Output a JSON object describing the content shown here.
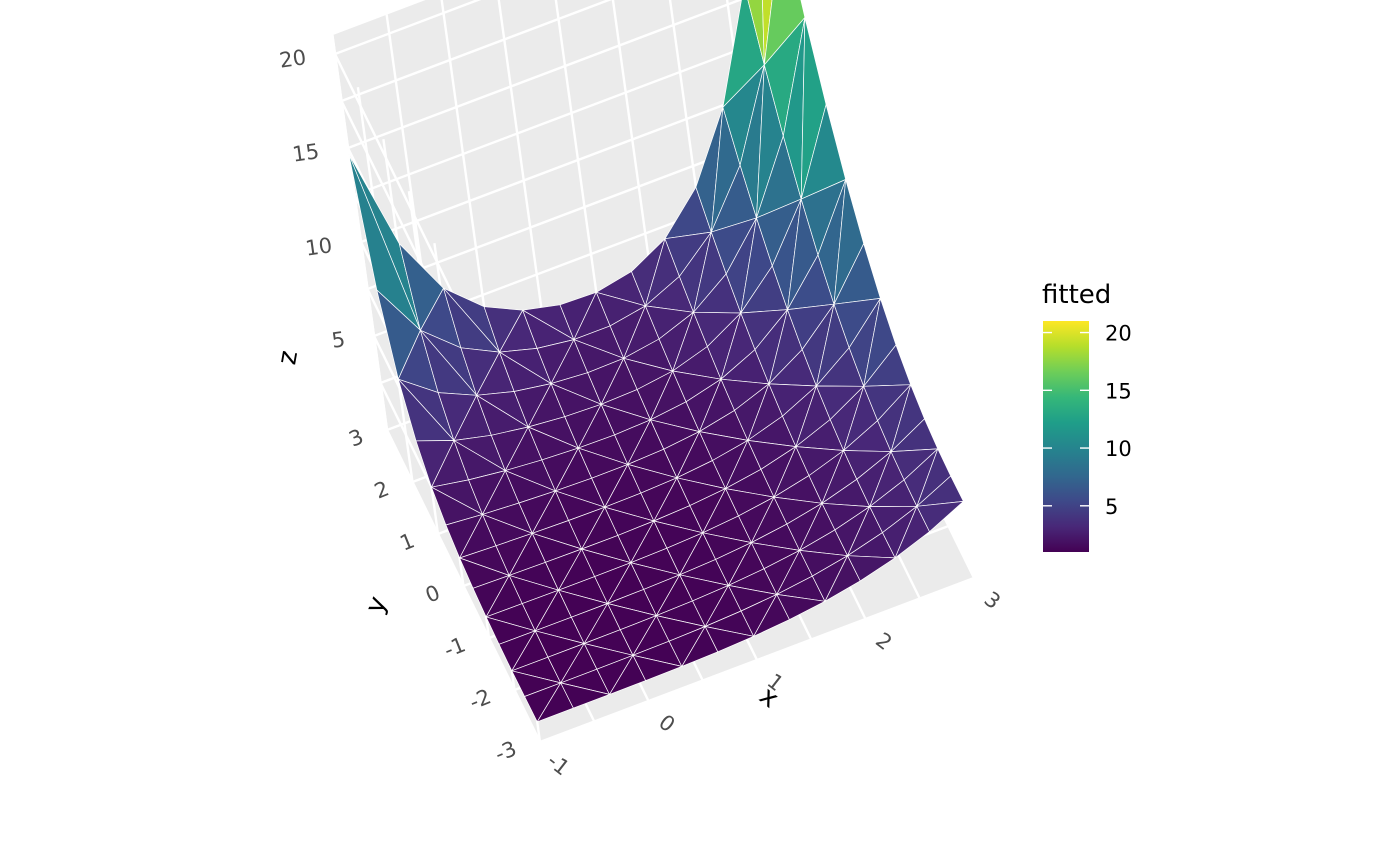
{
  "chart_data": {
    "type": "surface3d",
    "x_label": "x",
    "y_label": "y",
    "z_label": "z",
    "x_ticks": [
      "-1",
      "0",
      "1",
      "2",
      "3"
    ],
    "y_ticks": [
      "-3",
      "-2",
      "-1",
      "0",
      "1",
      "2",
      "3"
    ],
    "z_ticks": [
      "5",
      "10",
      "15",
      "20"
    ],
    "xlim": [
      -1,
      3
    ],
    "ylim": [
      -3,
      3
    ],
    "zlim": [
      0,
      21
    ],
    "surface": {
      "x_range": [
        -1,
        3
      ],
      "y_range": [
        -3,
        3
      ],
      "function": "fitted values of a smooth surface, lowest (~1) near x=-0.5,y=-1.5, rising to ~13 at x=-1,y=3 and ~19 at x=3,y=3",
      "mesh": "triangulated grid, white edges"
    },
    "legend": {
      "title": "fitted",
      "labels": [
        "5",
        "10",
        "15",
        "20"
      ],
      "range": [
        1,
        21
      ],
      "palette": [
        "#440154",
        "#482878",
        "#3e4989",
        "#31688e",
        "#26828e",
        "#1f9e89",
        "#35b779",
        "#6ece58",
        "#b5de2b",
        "#fde725"
      ]
    },
    "grid": true,
    "panel_color": "#ebebeb"
  }
}
